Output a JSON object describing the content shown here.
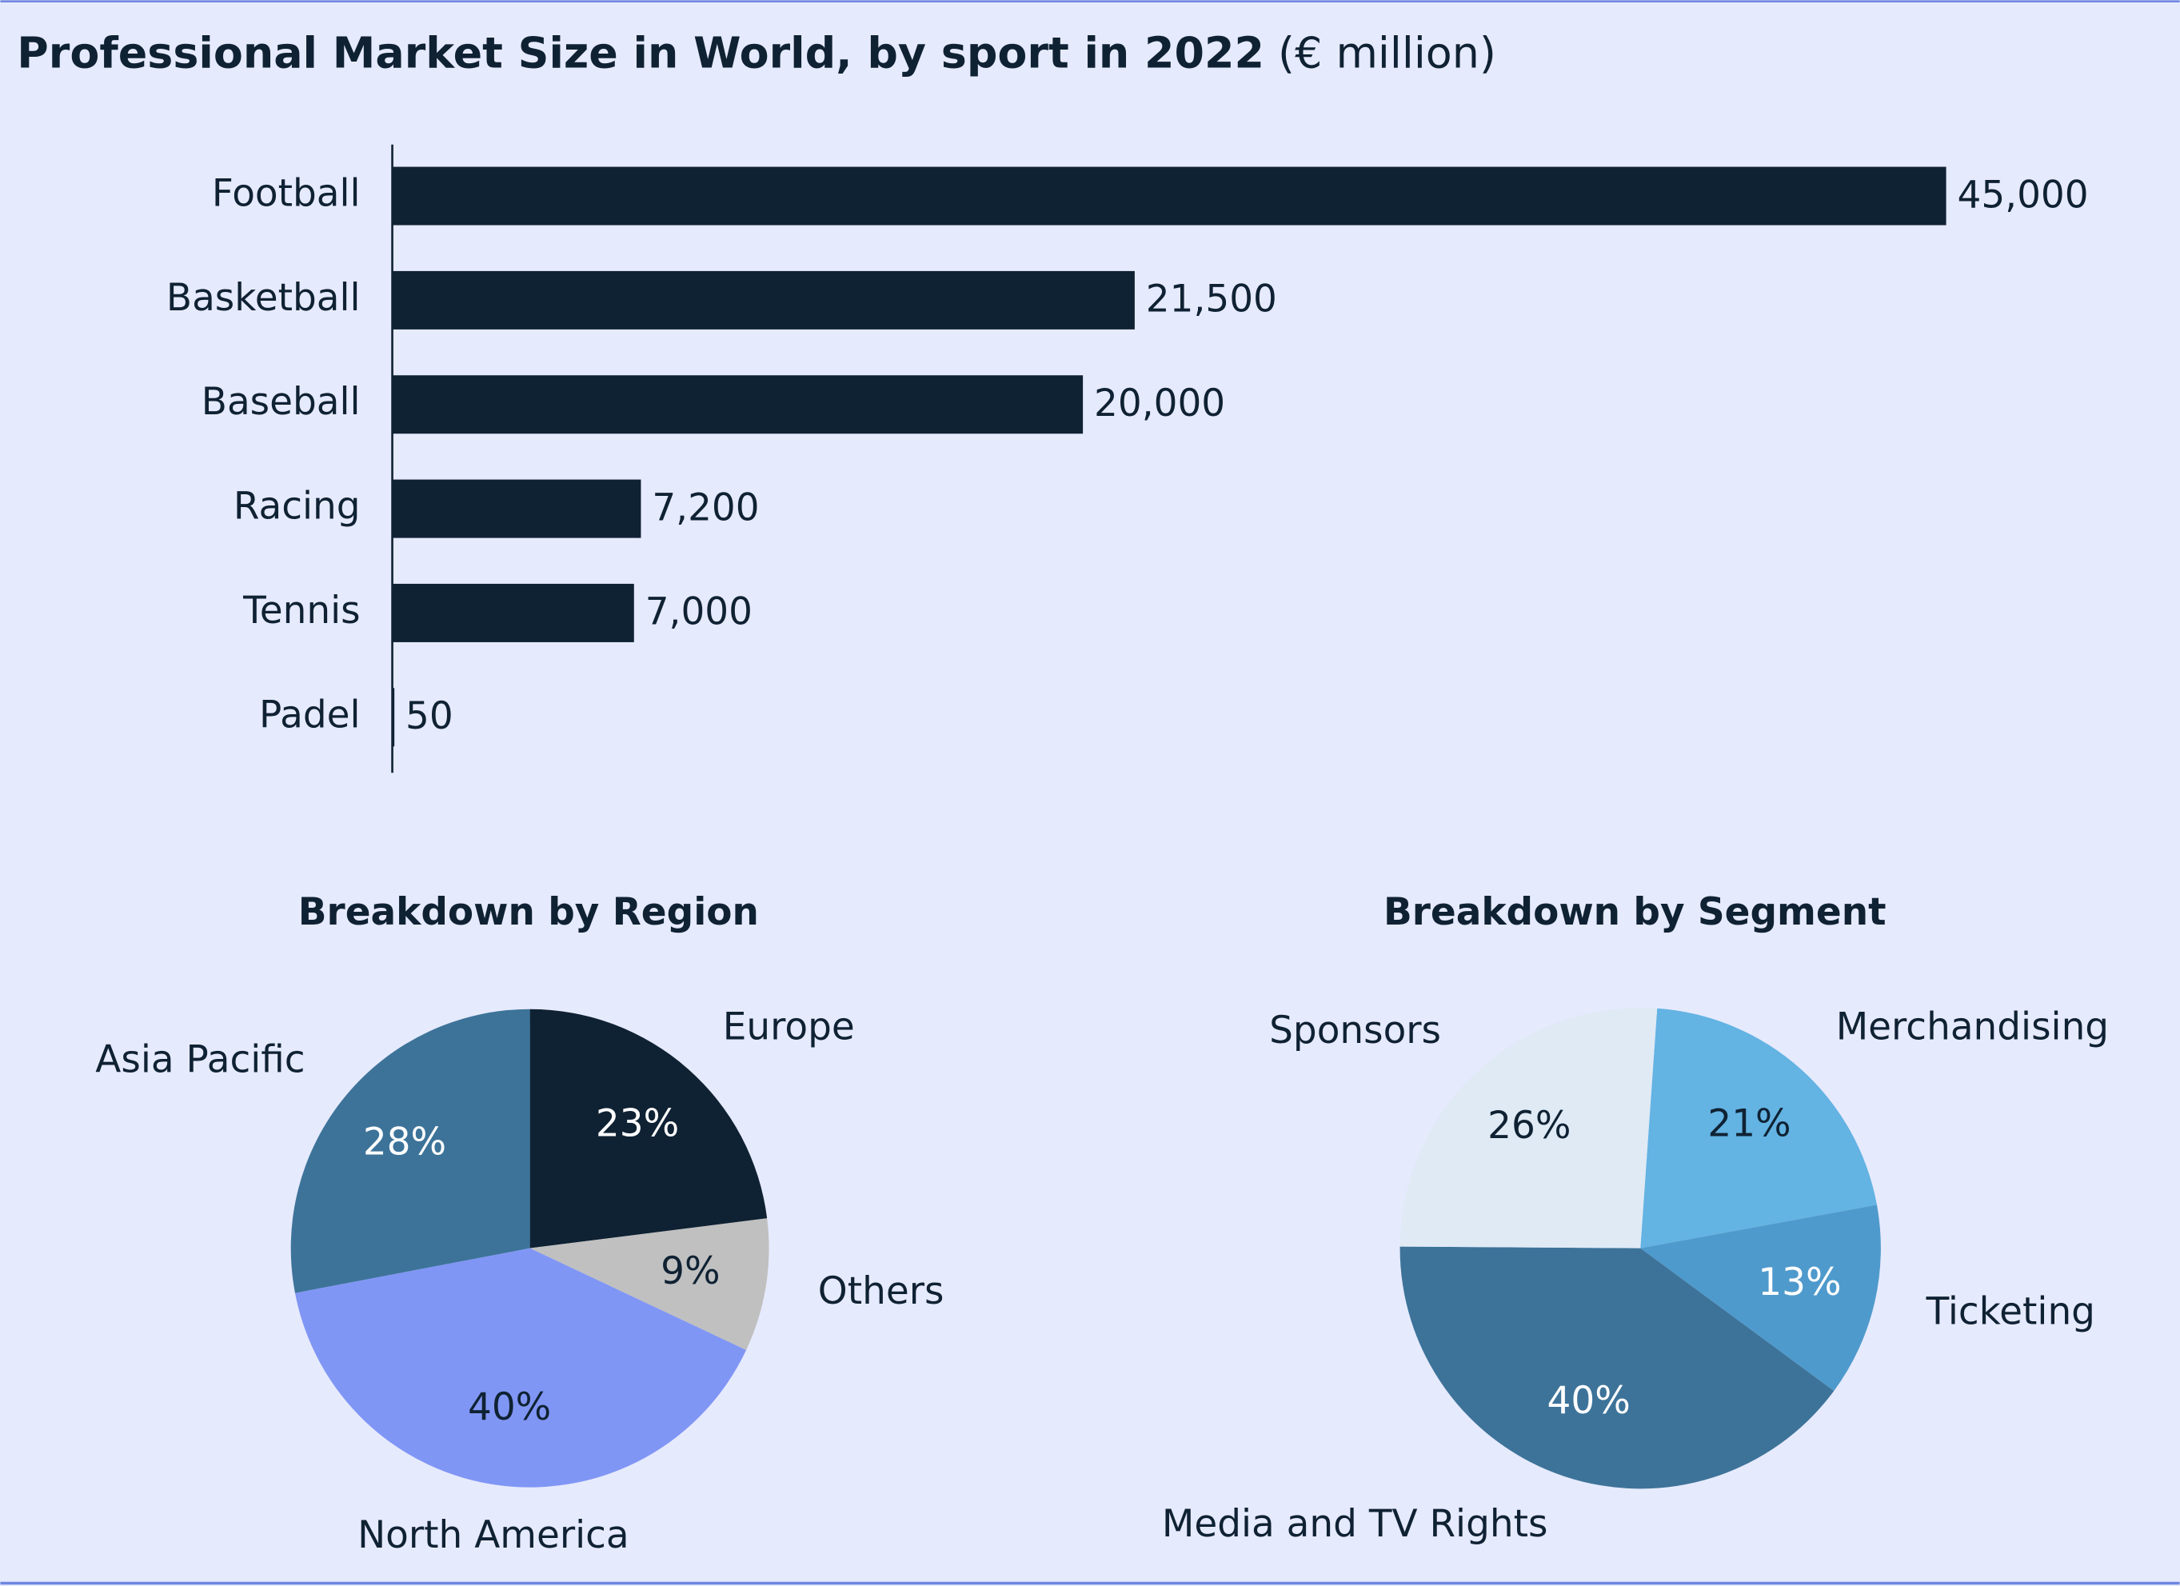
{
  "chart_data": [
    {
      "type": "bar",
      "orientation": "horizontal",
      "title": "Professional Market Size in World, by sport in 2022",
      "subtitle": "(€ million)",
      "categories": [
        "Football",
        "Basketball",
        "Baseball",
        "Racing",
        "Tennis",
        "Padel"
      ],
      "values": [
        45000,
        21500,
        20000,
        7200,
        7000,
        50
      ],
      "value_labels": [
        "45,000",
        "21,500",
        "20,000",
        "7,200",
        "7,000",
        "50"
      ],
      "color": "#0f2233"
    },
    {
      "type": "pie",
      "title": "Breakdown by Region",
      "categories": [
        "Europe",
        "Others",
        "North America",
        "Asia Pacific"
      ],
      "values": [
        23,
        9,
        40,
        28
      ],
      "value_labels": [
        "23%",
        "9%",
        "40%",
        "28%"
      ],
      "colors": [
        "#0f2233",
        "#c0c0c0",
        "#8096f5",
        "#3d7399"
      ]
    },
    {
      "type": "pie",
      "title": "Breakdown by Segment",
      "categories": [
        "Merchandising",
        "Ticketing",
        "Media and TV Rights",
        "Sponsors"
      ],
      "values": [
        21,
        13,
        40,
        26
      ],
      "value_labels": [
        "21%",
        "13%",
        "40%",
        "26%"
      ],
      "colors": [
        "#63b3e3",
        "#4f9acc",
        "#3d7399",
        "#dfeaf5"
      ]
    }
  ]
}
